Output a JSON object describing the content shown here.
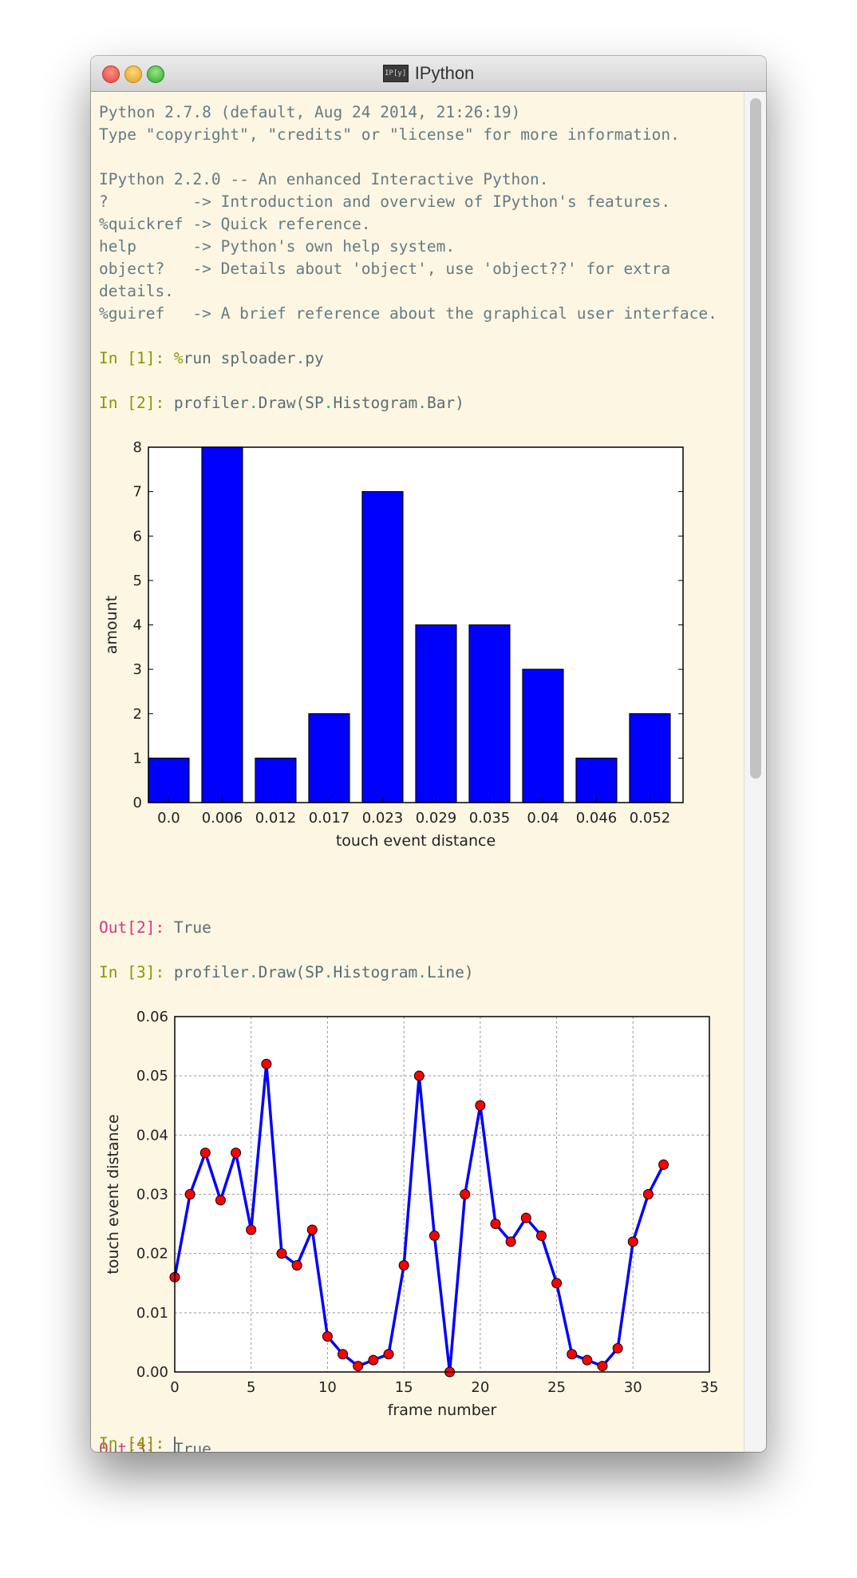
{
  "window": {
    "title": "IPython",
    "app_icon_text": "IP[y]"
  },
  "console": {
    "banner": [
      "Python 2.7.8 (default, Aug 24 2014, 21:26:19)",
      "Type \"copyright\", \"credits\" or \"license\" for more information.",
      "",
      "IPython 2.2.0 -- An enhanced Interactive Python.",
      "?         -> Introduction and overview of IPython's features.",
      "%quickref -> Quick reference.",
      "help      -> Python's own help system.",
      "object?   -> Details about 'object', use 'object??' for extra",
      "details.",
      "%guiref   -> A brief reference about the graphical user interface."
    ],
    "cells": [
      {
        "in_prompt": "In [1]: ",
        "magic": "%",
        "code": "run sploader",
        "code_dot": ".",
        "code_tail": "py"
      },
      {
        "in_prompt": "In [2]: ",
        "code_a": "profiler",
        "code_dot1": ".",
        "code_b": "Draw(SP",
        "code_dot2": ".",
        "code_c": "Histogram",
        "code_dot3": ".",
        "code_d": "Bar)",
        "out_prompt": "Out[2]: ",
        "out_value": "True"
      },
      {
        "in_prompt": "In [3]: ",
        "code_a": "profiler",
        "code_dot1": ".",
        "code_b": "Draw(SP",
        "code_dot2": ".",
        "code_c": "Histogram",
        "code_dot3": ".",
        "code_d": "Line)",
        "out_prompt": "Out[3]: ",
        "out_value": "True"
      },
      {
        "in_prompt": "In [4]: "
      }
    ]
  },
  "colors": {
    "bar_fill": "#0000ff",
    "line_color": "#0000ff",
    "marker_fill": "#ff0000",
    "background": "#fdf6e3"
  },
  "chart_data": [
    {
      "type": "bar",
      "categories": [
        "0.0",
        "0.006",
        "0.012",
        "0.017",
        "0.023",
        "0.029",
        "0.035",
        "0.04",
        "0.046",
        "0.052"
      ],
      "values": [
        1,
        8,
        1,
        2,
        7,
        4,
        4,
        3,
        1,
        2
      ],
      "xlabel": "touch event distance",
      "ylabel": "amount",
      "ylim": [
        0,
        8
      ],
      "yticks": [
        "0",
        "1",
        "2",
        "3",
        "4",
        "5",
        "6",
        "7",
        "8"
      ],
      "grid": false
    },
    {
      "type": "line",
      "x": [
        0,
        1,
        2,
        3,
        4,
        5,
        6,
        7,
        8,
        9,
        10,
        11,
        12,
        13,
        14,
        15,
        16,
        17,
        18,
        19,
        20,
        21,
        22,
        23,
        24,
        25,
        26,
        27,
        28,
        29,
        30,
        31,
        32
      ],
      "values": [
        0.016,
        0.03,
        0.037,
        0.029,
        0.037,
        0.024,
        0.052,
        0.02,
        0.018,
        0.024,
        0.006,
        0.003,
        0.001,
        0.002,
        0.003,
        0.018,
        0.05,
        0.023,
        0.0,
        0.03,
        0.045,
        0.025,
        0.022,
        0.026,
        0.023,
        0.015,
        0.003,
        0.002,
        0.001,
        0.004,
        0.022,
        0.03,
        0.035
      ],
      "xlabel": "frame number",
      "ylabel": "touch event distance",
      "xlim": [
        0,
        35
      ],
      "ylim": [
        0,
        0.06
      ],
      "xticks": [
        "0",
        "5",
        "10",
        "15",
        "20",
        "25",
        "30",
        "35"
      ],
      "yticks": [
        "0.00",
        "0.01",
        "0.02",
        "0.03",
        "0.04",
        "0.05",
        "0.06"
      ],
      "grid": true
    }
  ]
}
